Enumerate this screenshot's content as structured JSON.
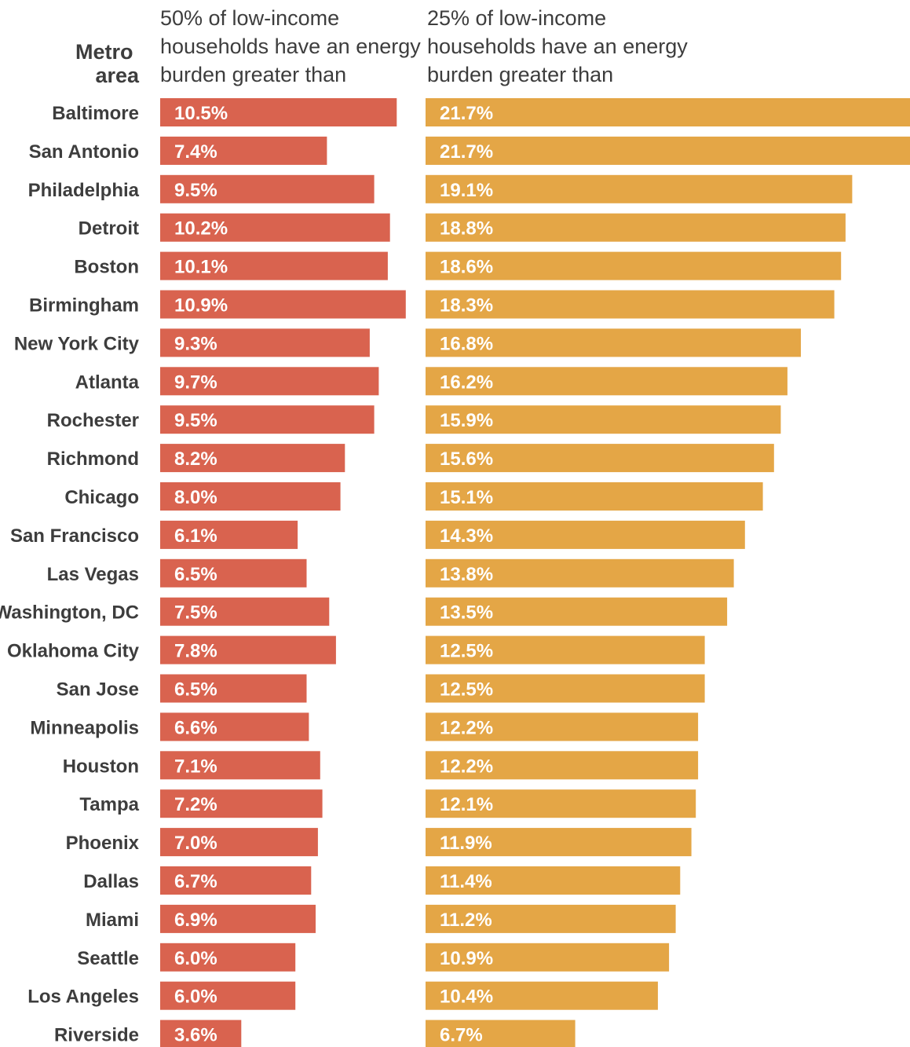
{
  "chart_data": {
    "type": "bar",
    "orientation": "horizontal",
    "category_header": "Metro area",
    "category_header_lines": [
      "Metro",
      "area"
    ],
    "categories": [
      "Baltimore",
      "San Antonio",
      "Philadelphia",
      "Detroit",
      "Boston",
      "Birmingham",
      "New York City",
      "Atlanta",
      "Rochester",
      "Richmond",
      "Chicago",
      "San Francisco",
      "Las Vegas",
      "Washington, DC",
      "Oklahoma City",
      "San Jose",
      "Minneapolis",
      "Houston",
      "Tampa",
      "Phoenix",
      "Dallas",
      "Miami",
      "Seattle",
      "Los Angeles",
      "Riverside"
    ],
    "series": [
      {
        "name": "50% of low-income households have an energy burden greater than",
        "name_lines": [
          "50% of low-income",
          "households have an energy",
          "burden greater than"
        ],
        "color": "#d9634f",
        "values": [
          10.5,
          7.4,
          9.5,
          10.2,
          10.1,
          10.9,
          9.3,
          9.7,
          9.5,
          8.2,
          8.0,
          6.1,
          6.5,
          7.5,
          7.8,
          6.5,
          6.6,
          7.1,
          7.2,
          7.0,
          6.7,
          6.9,
          6.0,
          6.0,
          3.6
        ],
        "labels": [
          "10.5%",
          "7.4%",
          "9.5%",
          "10.2%",
          "10.1%",
          "10.9%",
          "9.3%",
          "9.7%",
          "9.5%",
          "8.2%",
          "8.0%",
          "6.1%",
          "6.5%",
          "7.5%",
          "7.8%",
          "6.5%",
          "6.6%",
          "7.1%",
          "7.2%",
          "7.0%",
          "6.7%",
          "6.9%",
          "6.0%",
          "6.0%",
          "3.6%"
        ]
      },
      {
        "name": "25% of low-income households have an energy burden greater than",
        "name_lines": [
          "25% of low-income",
          "households have an energy",
          "burden greater than"
        ],
        "color": "#e4a646",
        "values": [
          21.7,
          21.7,
          19.1,
          18.8,
          18.6,
          18.3,
          16.8,
          16.2,
          15.9,
          15.6,
          15.1,
          14.3,
          13.8,
          13.5,
          12.5,
          12.5,
          12.2,
          12.2,
          12.1,
          11.9,
          11.4,
          11.2,
          10.9,
          10.4,
          6.7
        ],
        "labels": [
          "21.7%",
          "21.7%",
          "19.1%",
          "18.8%",
          "18.6%",
          "18.3%",
          "16.8%",
          "16.2%",
          "15.9%",
          "15.6%",
          "15.1%",
          "14.3%",
          "13.8%",
          "13.5%",
          "12.5%",
          "12.5%",
          "12.2%",
          "12.2%",
          "12.1%",
          "11.9%",
          "11.4%",
          "11.2%",
          "10.9%",
          "10.4%",
          "6.7%"
        ]
      }
    ],
    "unit": "%",
    "grid": false,
    "legend": "none"
  }
}
